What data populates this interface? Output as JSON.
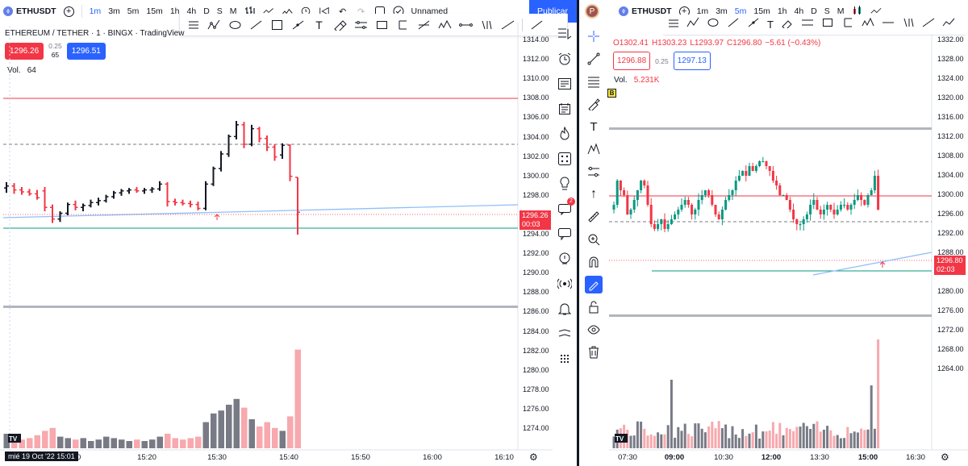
{
  "left": {
    "symbol": "ETHUSDT",
    "intervals": [
      "1m",
      "3m",
      "5m",
      "15m",
      "1h",
      "4h",
      "D",
      "S",
      "M"
    ],
    "active_interval": "1m",
    "layout_name": "Unnamed",
    "publish_label": "Publicar",
    "legend_title": "ETHEREUM / TETHER · 1 · BINGX · TradingView",
    "bid": "1296.26",
    "spread": "0.25",
    "ask": "1296.51",
    "qty": "65",
    "vol_label": "Vol.",
    "vol_value": "64",
    "price_ticks": [
      "1314.00",
      "1312.00",
      "1310.00",
      "1308.00",
      "1306.00",
      "1304.00",
      "1302.00",
      "1300.00",
      "1298.00",
      "1296.00",
      "1294.00",
      "1292.00",
      "1290.00",
      "1288.00",
      "1286.00",
      "1284.00",
      "1282.00",
      "1280.00",
      "1278.00",
      "1276.00",
      "1274.00"
    ],
    "time_ticks": [
      "10",
      "15:20",
      "15:30",
      "15:40",
      "15:50",
      "16:00",
      "16:10"
    ],
    "time_cursor_label": "mié 19 Oct '22  15:01",
    "last_price": "1296.26",
    "last_countdown": "00:03",
    "tv_logo": "17"
  },
  "right": {
    "avatar_letter": "P",
    "symbol": "ETHUSDT",
    "intervals": [
      "1m",
      "3m",
      "5m",
      "15m",
      "1h",
      "4h",
      "D",
      "S",
      "M"
    ],
    "active_interval": "5m",
    "ohlc": {
      "o": "O1302.41",
      "h": "H1303.23",
      "l": "L1293.97",
      "c": "C1296.80",
      "chg": "−5.61 (−0.43%)"
    },
    "bid": "1296.88",
    "spread": "0.25",
    "ask": "1297.13",
    "vol_label": "Vol.",
    "vol_value": "5.231K",
    "b_marker": "B",
    "price_ticks": [
      "1332.00",
      "1328.00",
      "1324.00",
      "1320.00",
      "1316.00",
      "1312.00",
      "1308.00",
      "1304.00",
      "1300.00",
      "1296.00",
      "1292.00",
      "1288.00",
      "1284.00",
      "1280.00",
      "1276.00",
      "1272.00",
      "1268.00",
      "1264.00"
    ],
    "time_ticks": [
      "07:30",
      "09:00",
      "10:30",
      "12:00",
      "13:30",
      "15:00",
      "16:30"
    ],
    "last_price": "1296.80",
    "last_countdown": "02:03",
    "tv_logo": "17"
  },
  "left_chart_data": {
    "type": "ohlc",
    "timeframe": "1m",
    "ylim": [
      1273,
      1315
    ],
    "bars": [
      {
        "o": 1298.8,
        "h": 1299.4,
        "l": 1298.3,
        "c": 1299.0,
        "v": 10
      },
      {
        "o": 1299.0,
        "h": 1299.3,
        "l": 1298.2,
        "c": 1298.6,
        "v": 8
      },
      {
        "o": 1298.6,
        "h": 1298.9,
        "l": 1298.1,
        "c": 1298.4,
        "v": 6
      },
      {
        "o": 1298.4,
        "h": 1298.7,
        "l": 1298.0,
        "c": 1298.2,
        "v": 7
      },
      {
        "o": 1298.2,
        "h": 1298.6,
        "l": 1297.6,
        "c": 1297.8,
        "v": 9
      },
      {
        "o": 1298.5,
        "h": 1298.9,
        "l": 1296.4,
        "c": 1296.8,
        "v": 12
      },
      {
        "o": 1296.8,
        "h": 1297.1,
        "l": 1295.2,
        "c": 1295.6,
        "v": 14
      },
      {
        "o": 1295.6,
        "h": 1296.4,
        "l": 1295.3,
        "c": 1296.2,
        "v": 8
      },
      {
        "o": 1296.2,
        "h": 1297.3,
        "l": 1296.0,
        "c": 1297.1,
        "v": 7
      },
      {
        "o": 1297.1,
        "h": 1297.5,
        "l": 1296.5,
        "c": 1296.8,
        "v": 6
      },
      {
        "o": 1296.8,
        "h": 1297.2,
        "l": 1296.4,
        "c": 1297.0,
        "v": 7
      },
      {
        "o": 1297.0,
        "h": 1297.6,
        "l": 1296.8,
        "c": 1297.3,
        "v": 5
      },
      {
        "o": 1297.3,
        "h": 1297.8,
        "l": 1297.0,
        "c": 1297.5,
        "v": 6
      },
      {
        "o": 1297.5,
        "h": 1298.1,
        "l": 1297.3,
        "c": 1297.9,
        "v": 8
      },
      {
        "o": 1297.9,
        "h": 1298.5,
        "l": 1297.7,
        "c": 1298.3,
        "v": 7
      },
      {
        "o": 1298.3,
        "h": 1298.7,
        "l": 1298.0,
        "c": 1298.5,
        "v": 6
      },
      {
        "o": 1298.5,
        "h": 1298.8,
        "l": 1298.2,
        "c": 1298.6,
        "v": 5
      },
      {
        "o": 1298.6,
        "h": 1298.9,
        "l": 1298.3,
        "c": 1298.5,
        "v": 6
      },
      {
        "o": 1298.5,
        "h": 1298.8,
        "l": 1298.2,
        "c": 1298.6,
        "v": 5
      },
      {
        "o": 1298.6,
        "h": 1298.9,
        "l": 1298.3,
        "c": 1298.7,
        "v": 6
      },
      {
        "o": 1298.7,
        "h": 1299.5,
        "l": 1298.5,
        "c": 1299.2,
        "v": 8
      },
      {
        "o": 1299.2,
        "h": 1299.4,
        "l": 1296.9,
        "c": 1297.4,
        "v": 10
      },
      {
        "o": 1297.4,
        "h": 1297.7,
        "l": 1297.0,
        "c": 1297.3,
        "v": 7
      },
      {
        "o": 1297.3,
        "h": 1297.6,
        "l": 1297.0,
        "c": 1297.2,
        "v": 6
      },
      {
        "o": 1297.2,
        "h": 1297.5,
        "l": 1296.8,
        "c": 1297.1,
        "v": 7
      },
      {
        "o": 1297.1,
        "h": 1297.4,
        "l": 1296.5,
        "c": 1296.7,
        "v": 8
      },
      {
        "o": 1296.7,
        "h": 1299.5,
        "l": 1296.5,
        "c": 1299.2,
        "v": 18
      },
      {
        "o": 1299.2,
        "h": 1301.0,
        "l": 1299.0,
        "c": 1300.8,
        "v": 24
      },
      {
        "o": 1300.8,
        "h": 1302.6,
        "l": 1300.5,
        "c": 1302.3,
        "v": 26
      },
      {
        "o": 1302.3,
        "h": 1304.3,
        "l": 1302.0,
        "c": 1304.1,
        "v": 30
      },
      {
        "o": 1304.1,
        "h": 1305.7,
        "l": 1303.8,
        "c": 1305.3,
        "v": 34
      },
      {
        "o": 1305.3,
        "h": 1305.6,
        "l": 1302.9,
        "c": 1303.3,
        "v": 28
      },
      {
        "o": 1303.3,
        "h": 1305.3,
        "l": 1303.1,
        "c": 1304.9,
        "v": 20
      },
      {
        "o": 1304.9,
        "h": 1305.1,
        "l": 1303.5,
        "c": 1303.9,
        "v": 15
      },
      {
        "o": 1303.9,
        "h": 1304.2,
        "l": 1302.6,
        "c": 1303.0,
        "v": 18
      },
      {
        "o": 1303.0,
        "h": 1303.3,
        "l": 1301.6,
        "c": 1302.0,
        "v": 14
      },
      {
        "o": 1302.2,
        "h": 1303.4,
        "l": 1301.8,
        "c": 1303.2,
        "v": 12
      },
      {
        "o": 1303.2,
        "h": 1303.3,
        "l": 1299.5,
        "c": 1300.0,
        "v": 22
      },
      {
        "o": 1299.9,
        "h": 1299.9,
        "l": 1294.0,
        "c": 1296.3,
        "v": 68
      }
    ]
  },
  "right_chart_data": {
    "type": "candlestick",
    "timeframe": "5m",
    "ylim": [
      1262,
      1334
    ]
  }
}
